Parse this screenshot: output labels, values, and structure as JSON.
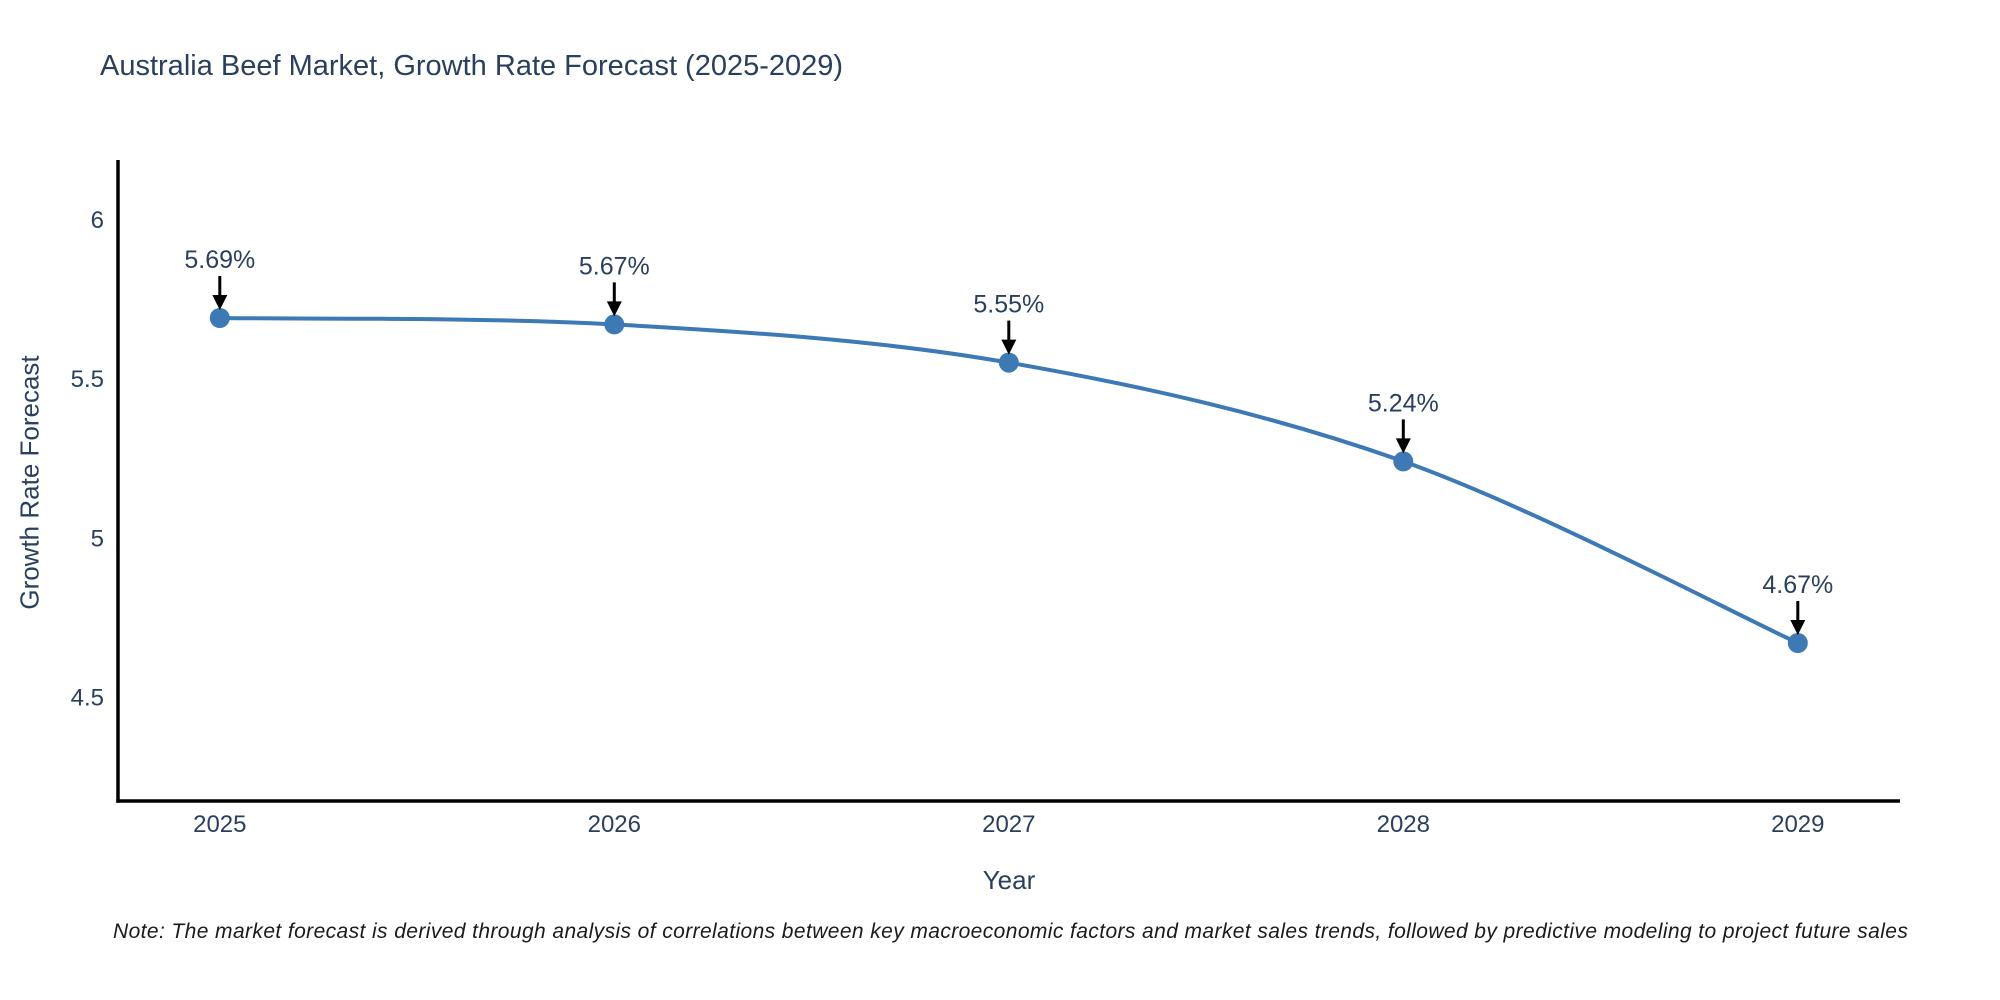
{
  "title": "Australia Beef Market, Growth Rate Forecast (2025-2029)",
  "note": "Note: The market forecast is derived through analysis of correlations between key macroeconomic factors and market sales trends, followed by predictive modeling to project future sales",
  "chart_data": {
    "type": "line",
    "title": "Australia Beef Market, Growth Rate Forecast (2025-2029)",
    "x": [
      2025,
      2026,
      2027,
      2028,
      2029
    ],
    "x_tick_labels": [
      "2025",
      "2026",
      "2027",
      "2028",
      "2029"
    ],
    "values": [
      5.69,
      5.67,
      5.55,
      5.24,
      4.67
    ],
    "point_labels": [
      "5.69%",
      "5.67%",
      "5.55%",
      "5.24%",
      "4.67%"
    ],
    "xlabel": "Year",
    "ylabel": "Growth Rate Forecast",
    "yticks": [
      4.5,
      5,
      5.5,
      6
    ],
    "ylim": [
      4.174,
      6.186
    ],
    "xlim": [
      2024.742,
      2029.259
    ],
    "line_shape": "spline",
    "grid": false,
    "legend": "none",
    "colors": {
      "line": "#3c79b5",
      "marker": "#3c79b5",
      "axis_line": "#000000",
      "tick_text": "#2a3f5f",
      "annotation_text": "#2a3f5f",
      "arrow": "#000000",
      "background": "#ffffff"
    }
  }
}
